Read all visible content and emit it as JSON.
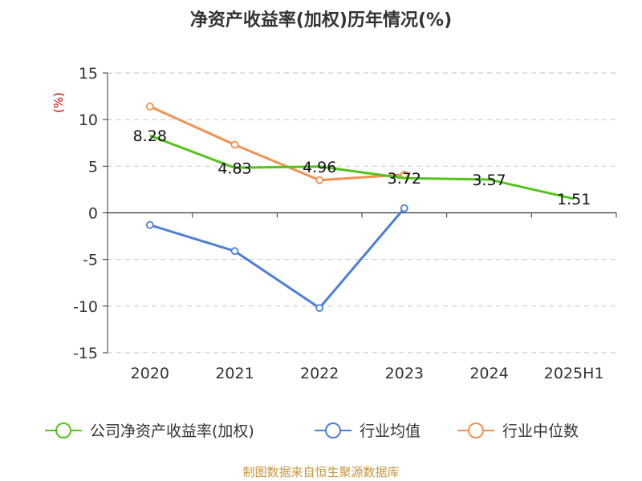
{
  "chart_data": {
    "type": "line",
    "title": "净资产收益率(加权)历年情况(%)",
    "ylabel": "(%)",
    "xlabel": "",
    "categories": [
      "2020",
      "2021",
      "2022",
      "2023",
      "2024",
      "2025H1"
    ],
    "ylim": [
      -15,
      15
    ],
    "yticks": [
      15,
      10,
      5,
      0,
      -5,
      -10,
      -15
    ],
    "grid": true,
    "legend_position": "bottom",
    "series": [
      {
        "name": "公司净资产收益率(加权)",
        "color": "#52c41a",
        "values": [
          8.28,
          4.83,
          4.96,
          3.72,
          3.57,
          1.51
        ],
        "labels": [
          "8.28",
          "4.83",
          "4.96",
          "3.72",
          "3.57",
          "1.51"
        ],
        "show_markers": false
      },
      {
        "name": "行业均值",
        "color": "#4a7fd6",
        "values": [
          -1.3,
          -4.1,
          -10.2,
          0.5,
          null,
          null
        ],
        "show_markers": true
      },
      {
        "name": "行业中位数",
        "color": "#f39153",
        "values": [
          11.4,
          7.3,
          3.5,
          4.1,
          null,
          null
        ],
        "show_markers": true
      }
    ]
  },
  "source": "制图数据来自恒生聚源数据库",
  "colors": {
    "ylabel": "#cc0000",
    "source": "#c8963c",
    "grid": "#cccccc",
    "axis": "#333333"
  }
}
